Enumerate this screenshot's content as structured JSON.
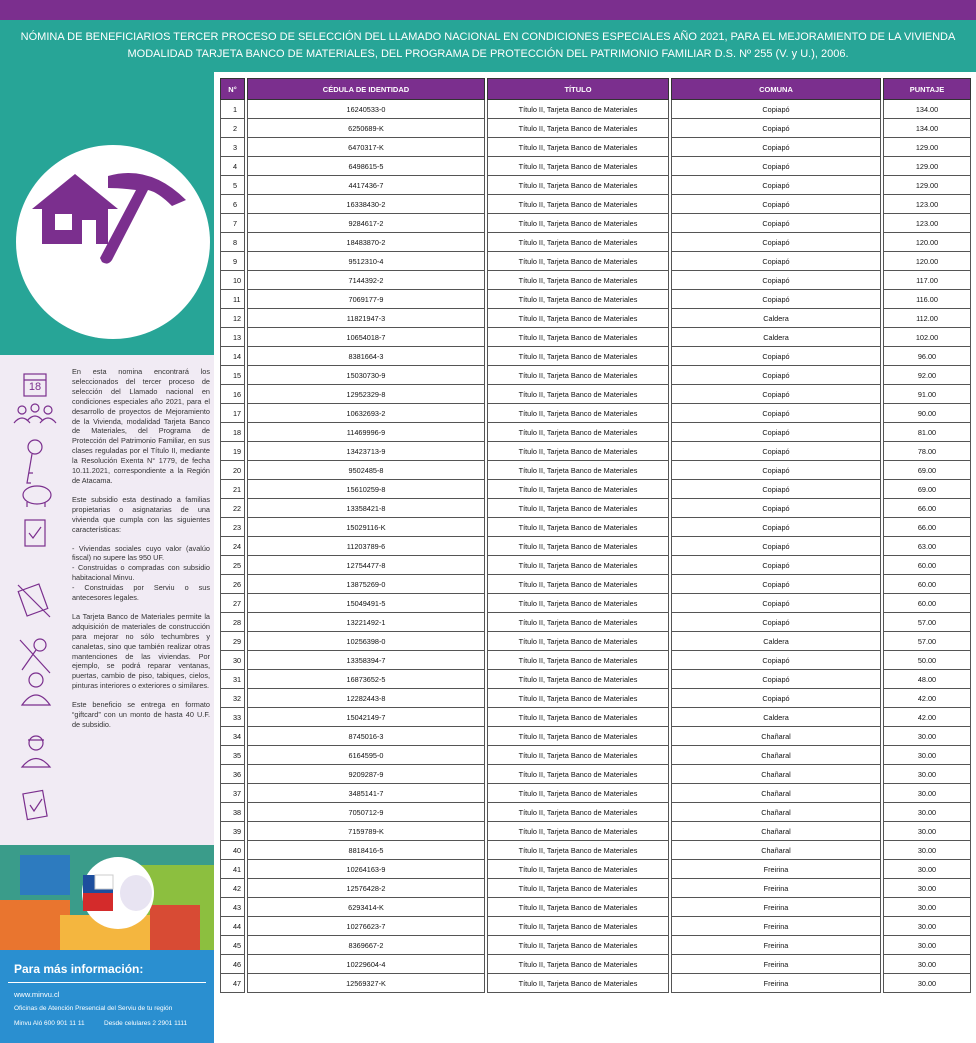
{
  "header": {
    "title_lines": [
      "NÓMINA DE BENEFICIARIOS TERCER PROCESO DE SELECCIÓN DEL LLAMADO NACIONAL EN CONDICIONES ESPECIALES AÑO 2021,  PARA EL MEJORAMIENTO DE LA VIVIENDA",
      "MODALIDAD TARJETA BANCO DE MATERIALES, DEL PROGRAMA DE PROTECCIÓN DEL PATRIMONIO FAMILIAR D.S. Nº 255 (V. y U.), 2006."
    ]
  },
  "sidebar": {
    "calendar_day": "18",
    "paragraphs": [
      "En esta nomina encontrará los seleccionados del tercer proceso de selección del Llamado nacional en condiciones especiales año 2021, para el desarrollo de proyectos de Mejoramiento de la Vivienda, modalidad Tarjeta Banco de Materiales, del Programa de Protección del Patrimonio Familiar, en sus clases reguladas por el Título II, mediante la Resolución Exenta N° 1779, de fecha 10.11.2021, correspondiente a la Región de Atacama.",
      "Este subsidio esta destinado a familias propietarias o asignatarias de una vivienda que cumpla con las siguientes características:",
      "- Viviendas sociales cuyo valor (avalúo fiscal) no supere las 950 UF.",
      "- Construidas o compradas con subsidio habitacional Minvu.",
      "- Construidas por Serviu o sus antecesores legales.",
      "La Tarjeta Banco de Materiales permite la adquisición de materiales de construcción para mejorar no sólo techumbres y canaletas, sino que también realizar otras mantenciones de las viviendas. Por ejemplo, se podrá reparar ventanas, puertas, cambio de piso, tabiques, cielos, pinturas interiores o exteriores o similares.",
      "Este beneficio se entrega en formato “giftcard” con un monto de hasta 40 U.F. de subsidio."
    ],
    "info": {
      "title": "Para más información:",
      "web": "www.minvu.cl",
      "offices": "Oficinas de Atención Presencial del Serviu de tu región",
      "phone": "Minvu Aló 600 901 11 11",
      "mobile": "Desde celulares 2 2901 1111"
    }
  },
  "table": {
    "columns": [
      "N°",
      "CÉDULA DE IDENTIDAD",
      "TÍTULO",
      "COMUNA",
      "PUNTAJE"
    ],
    "rows": [
      [
        "1",
        "16240533-0",
        "Título II, Tarjeta Banco de Materiales",
        "Copiapó",
        "134.00"
      ],
      [
        "2",
        "6250689-K",
        "Título II, Tarjeta Banco de Materiales",
        "Copiapó",
        "134.00"
      ],
      [
        "3",
        "6470317-K",
        "Título II, Tarjeta Banco de Materiales",
        "Copiapó",
        "129.00"
      ],
      [
        "4",
        "6498615-5",
        "Título II, Tarjeta Banco de Materiales",
        "Copiapó",
        "129.00"
      ],
      [
        "5",
        "4417436-7",
        "Título II, Tarjeta Banco de Materiales",
        "Copiapó",
        "129.00"
      ],
      [
        "6",
        "16338430-2",
        "Título II, Tarjeta Banco de Materiales",
        "Copiapó",
        "123.00"
      ],
      [
        "7",
        "9284617-2",
        "Título II, Tarjeta Banco de Materiales",
        "Copiapó",
        "123.00"
      ],
      [
        "8",
        "18483870-2",
        "Título II, Tarjeta Banco de Materiales",
        "Copiapó",
        "120.00"
      ],
      [
        "9",
        "9512310-4",
        "Título II, Tarjeta Banco de Materiales",
        "Copiapó",
        "120.00"
      ],
      [
        "10",
        "7144392-2",
        "Título II, Tarjeta Banco de Materiales",
        "Copiapó",
        "117.00"
      ],
      [
        "11",
        "7069177-9",
        "Título II, Tarjeta Banco de Materiales",
        "Copiapó",
        "116.00"
      ],
      [
        "12",
        "11821947-3",
        "Título II, Tarjeta Banco de Materiales",
        "Caldera",
        "112.00"
      ],
      [
        "13",
        "10654018-7",
        "Título II, Tarjeta Banco de Materiales",
        "Caldera",
        "102.00"
      ],
      [
        "14",
        "8381664-3",
        "Título II, Tarjeta Banco de Materiales",
        "Copiapó",
        "96.00"
      ],
      [
        "15",
        "15030730-9",
        "Título II, Tarjeta Banco de Materiales",
        "Copiapó",
        "92.00"
      ],
      [
        "16",
        "12952329-8",
        "Título II, Tarjeta Banco de Materiales",
        "Copiapó",
        "91.00"
      ],
      [
        "17",
        "10632693-2",
        "Título II, Tarjeta Banco de Materiales",
        "Copiapó",
        "90.00"
      ],
      [
        "18",
        "11469996-9",
        "Título II, Tarjeta Banco de Materiales",
        "Copiapó",
        "81.00"
      ],
      [
        "19",
        "13423713-9",
        "Título II, Tarjeta Banco de Materiales",
        "Copiapó",
        "78.00"
      ],
      [
        "20",
        "9502485-8",
        "Título II, Tarjeta Banco de Materiales",
        "Copiapó",
        "69.00"
      ],
      [
        "21",
        "15610259-8",
        "Título II, Tarjeta Banco de Materiales",
        "Copiapó",
        "69.00"
      ],
      [
        "22",
        "13358421-8",
        "Título II, Tarjeta Banco de Materiales",
        "Copiapó",
        "66.00"
      ],
      [
        "23",
        "15029116-K",
        "Título II, Tarjeta Banco de Materiales",
        "Copiapó",
        "66.00"
      ],
      [
        "24",
        "11203789-6",
        "Título II, Tarjeta Banco de Materiales",
        "Copiapó",
        "63.00"
      ],
      [
        "25",
        "12754477-8",
        "Título II, Tarjeta Banco de Materiales",
        "Copiapó",
        "60.00"
      ],
      [
        "26",
        "13875269-0",
        "Título II, Tarjeta Banco de Materiales",
        "Copiapó",
        "60.00"
      ],
      [
        "27",
        "15049491-5",
        "Título II, Tarjeta Banco de Materiales",
        "Copiapó",
        "60.00"
      ],
      [
        "28",
        "13221492-1",
        "Título II, Tarjeta Banco de Materiales",
        "Copiapó",
        "57.00"
      ],
      [
        "29",
        "10256398-0",
        "Título II, Tarjeta Banco de Materiales",
        "Caldera",
        "57.00"
      ],
      [
        "30",
        "13358394-7",
        "Título II, Tarjeta Banco de Materiales",
        "Copiapó",
        "50.00"
      ],
      [
        "31",
        "16873652-5",
        "Título II, Tarjeta Banco de Materiales",
        "Copiapó",
        "48.00"
      ],
      [
        "32",
        "12282443-8",
        "Título II, Tarjeta Banco de Materiales",
        "Copiapó",
        "42.00"
      ],
      [
        "33",
        "15042149-7",
        "Título II, Tarjeta Banco de Materiales",
        "Caldera",
        "42.00"
      ],
      [
        "34",
        "8745016-3",
        "Título II, Tarjeta Banco de Materiales",
        "Chañaral",
        "30.00"
      ],
      [
        "35",
        "6164595-0",
        "Título II, Tarjeta Banco de Materiales",
        "Chañaral",
        "30.00"
      ],
      [
        "36",
        "9209287-9",
        "Título II, Tarjeta Banco de Materiales",
        "Chañaral",
        "30.00"
      ],
      [
        "37",
        "3485141-7",
        "Título II, Tarjeta Banco de Materiales",
        "Chañaral",
        "30.00"
      ],
      [
        "38",
        "7050712-9",
        "Título II, Tarjeta Banco de Materiales",
        "Chañaral",
        "30.00"
      ],
      [
        "39",
        "7159789-K",
        "Título II, Tarjeta Banco de Materiales",
        "Chañaral",
        "30.00"
      ],
      [
        "40",
        "8818416-5",
        "Título II, Tarjeta Banco de Materiales",
        "Chañaral",
        "30.00"
      ],
      [
        "41",
        "10264163-9",
        "Título II, Tarjeta Banco de Materiales",
        "Freirina",
        "30.00"
      ],
      [
        "42",
        "12576428-2",
        "Título II, Tarjeta Banco de Materiales",
        "Freirina",
        "30.00"
      ],
      [
        "43",
        "6293414-K",
        "Título II, Tarjeta Banco de Materiales",
        "Freirina",
        "30.00"
      ],
      [
        "44",
        "10276623-7",
        "Título II, Tarjeta Banco de Materiales",
        "Freirina",
        "30.00"
      ],
      [
        "45",
        "8369667-2",
        "Título II, Tarjeta Banco de Materiales",
        "Freirina",
        "30.00"
      ],
      [
        "46",
        "10229604-4",
        "Título II, Tarjeta Banco de Materiales",
        "Freirina",
        "30.00"
      ],
      [
        "47",
        "12569327-K",
        "Título II, Tarjeta Banco de Materiales",
        "Freirina",
        "30.00"
      ]
    ]
  }
}
